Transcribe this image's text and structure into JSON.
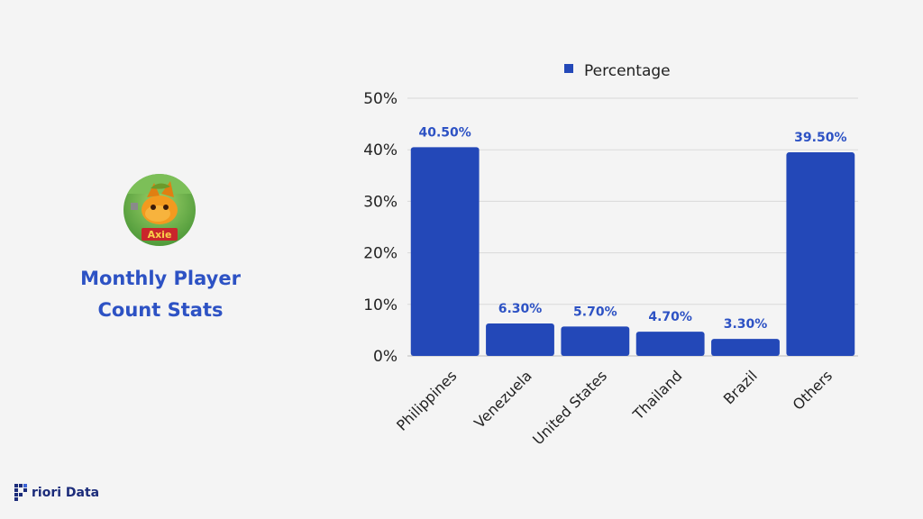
{
  "left_panel": {
    "title_line1": "Monthly Player",
    "title_line2": "Count Stats",
    "logo_icon": "axie-infinity-logo-icon",
    "logo_text": "Axie"
  },
  "brand": {
    "icon": "priori-data-logo-icon",
    "text": "riori Data"
  },
  "colors": {
    "bar": "#2348b8",
    "accent_text": "#2d52c4",
    "background": "#f4f4f4",
    "gridline": "#d9d9d9"
  },
  "chart_data": {
    "type": "bar",
    "categories": [
      "Philippines",
      "Venezuela",
      "United States",
      "Thailand",
      "Brazil",
      "Others"
    ],
    "series": [
      {
        "name": "Percentage",
        "values": [
          40.5,
          6.3,
          5.7,
          4.7,
          3.3,
          39.5
        ],
        "data_labels": [
          "40.50%",
          "6.30%",
          "5.70%",
          "4.70%",
          "3.30%",
          "39.50%"
        ]
      }
    ],
    "y_ticks": [
      0,
      10,
      20,
      30,
      40,
      50
    ],
    "y_tick_labels": [
      "0%",
      "10%",
      "20%",
      "30%",
      "40%",
      "50%"
    ],
    "ylim": [
      0,
      50
    ],
    "grid": true,
    "legend_position": "top-center",
    "x_tick_rotation": "rotated -45°"
  }
}
